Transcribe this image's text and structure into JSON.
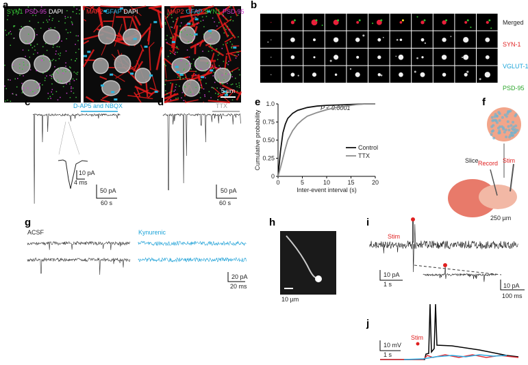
{
  "panels": {
    "a": {
      "label": "a",
      "images": [
        [
          "SYN1",
          "PSD-95",
          "DAPI"
        ],
        [
          "MAP2",
          "GFAP",
          "DAPI"
        ],
        [
          "MAP2",
          "GFAP",
          "SYN1",
          "PSD-95"
        ]
      ],
      "scale_bar": "5 µm"
    },
    "b": {
      "label": "b",
      "rows": [
        "Merged",
        "SYN-1",
        "VGLUT-1",
        "PSD-95"
      ]
    },
    "c": {
      "label": "c",
      "drug": "D-AP5 and NBQX",
      "inset_scale": [
        "10 pA",
        "4 ms"
      ],
      "scale": [
        "50 pA",
        "60 s"
      ]
    },
    "d": {
      "label": "d",
      "drug": "TTX",
      "scale": [
        "50 pA",
        "60 s"
      ]
    },
    "f": {
      "label": "f",
      "texts": [
        "Slice",
        "Record",
        "Stim",
        "250 µm"
      ]
    },
    "g": {
      "label": "g",
      "conditions": [
        "ACSF",
        "Kynurenic"
      ],
      "scale": [
        "20 pA",
        "20 ms"
      ]
    },
    "h": {
      "label": "h",
      "scale": "10 µm"
    },
    "i": {
      "label": "i",
      "stim": "Stim",
      "scale": [
        "10 pA",
        "1 s"
      ],
      "inset_scale": [
        "10 pA",
        "100 ms"
      ]
    },
    "j": {
      "label": "j",
      "stim": "Stim",
      "scale": [
        "10 mV",
        "1 s"
      ]
    }
  },
  "chart_data": {
    "type": "line",
    "panel_label": "e",
    "annotation": "P < 0.0001",
    "xlabel": "Inter-event interval (s)",
    "ylabel": "Cumulative probability",
    "x": [
      0,
      0.5,
      1,
      1.5,
      2,
      3,
      4,
      5,
      6,
      8,
      10,
      12,
      14,
      16,
      18,
      20
    ],
    "series": [
      {
        "name": "Control",
        "color": "#111111",
        "values": [
          0,
          0.35,
          0.6,
          0.72,
          0.8,
          0.87,
          0.91,
          0.93,
          0.95,
          0.97,
          0.98,
          0.985,
          0.99,
          0.995,
          1,
          1
        ]
      },
      {
        "name": "TTX",
        "color": "#8c8c8c",
        "values": [
          0,
          0.12,
          0.25,
          0.38,
          0.5,
          0.63,
          0.72,
          0.78,
          0.83,
          0.88,
          0.92,
          0.95,
          0.97,
          0.99,
          1,
          1
        ]
      }
    ],
    "xlim": [
      0,
      20
    ],
    "xticks": [
      0,
      5,
      10,
      15,
      20
    ],
    "ylim": [
      0,
      1
    ],
    "yticks": [
      0,
      0.25,
      {
        "value": 0.5,
        "label": "0.50"
      },
      0.75,
      {
        "value": 1,
        "label": "1.0"
      }
    ]
  }
}
